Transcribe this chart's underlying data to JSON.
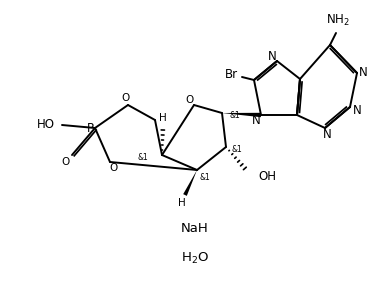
{
  "bg_color": "#ffffff",
  "line_color": "#000000",
  "lw": 1.4,
  "fs": 8.5,
  "NaH": "NaH",
  "H2O": "H$_2$O",
  "NH2": "NH$_2$"
}
